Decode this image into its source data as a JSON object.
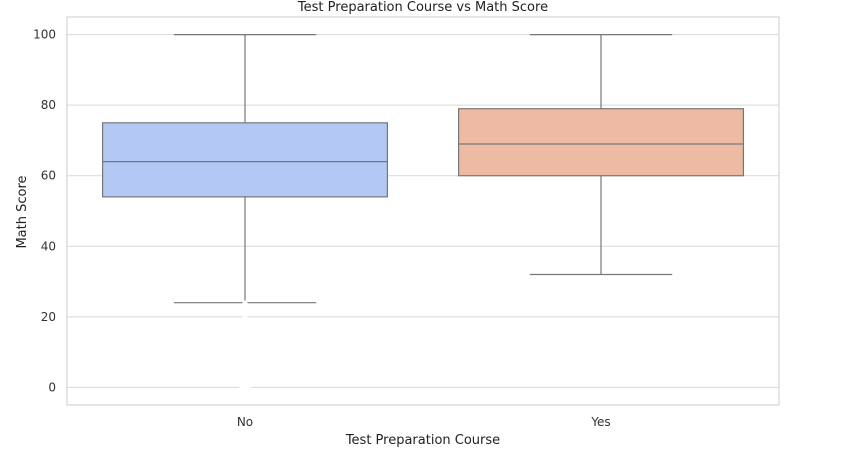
{
  "chart_data": {
    "type": "box",
    "title": "Test Preparation Course vs Math Score",
    "xlabel": "Test Preparation Course",
    "ylabel": "Math Score",
    "categories": [
      "No",
      "Yes"
    ],
    "ylim": [
      -5,
      105
    ],
    "yticks": [
      0,
      20,
      40,
      60,
      80,
      100
    ],
    "ytick_labels": [
      "0",
      "20",
      "40",
      "60",
      "80",
      "100"
    ],
    "grid": true,
    "boxes": [
      {
        "category": "No",
        "whisker_low": 24,
        "q1": 54,
        "median": 64,
        "q3": 75,
        "whisker_high": 100,
        "color": "#b3c8f5"
      },
      {
        "category": "Yes",
        "whisker_low": 32,
        "q1": 60,
        "median": 69,
        "q3": 79,
        "whisker_high": 100,
        "color": "#edbba4"
      }
    ],
    "outliers": [
      {
        "category": "No",
        "values": [
          0,
          8,
          18,
          19,
          22,
          23
        ]
      }
    ]
  },
  "colors": {
    "line": "#777777",
    "grid": "#d9d9d9",
    "frame": "#cccccc"
  }
}
